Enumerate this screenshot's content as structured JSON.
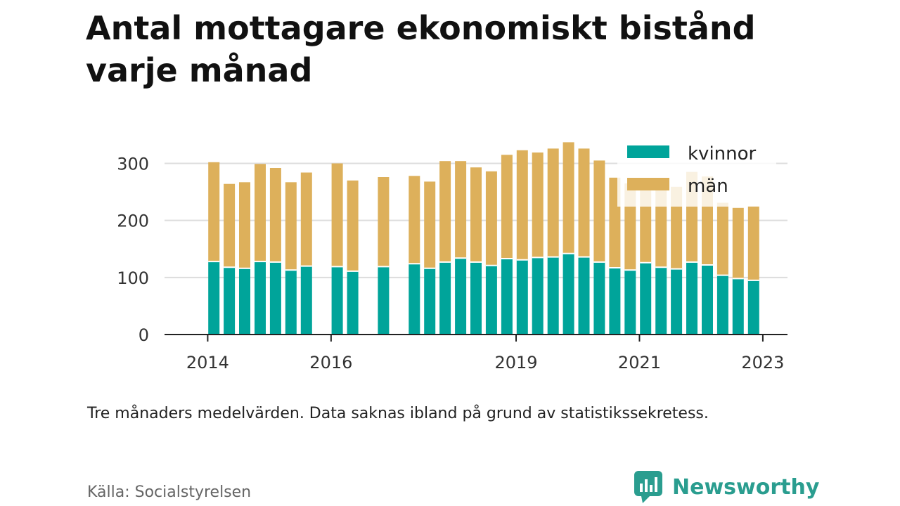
{
  "header": {
    "title": "Antal mottagare ekonomiskt bistånd varje månad"
  },
  "colors": {
    "kvinnor": "#00a49a",
    "man": "#ddb05b",
    "grid": "#dddddd",
    "brand": "#2a9d8f"
  },
  "legend": {
    "items": [
      "kvinnor",
      "män"
    ]
  },
  "chart_data": {
    "type": "bar",
    "stacked": true,
    "yticks": [
      "0",
      "100",
      "200",
      "300"
    ],
    "ylim": [
      0,
      340
    ],
    "xticks": [
      {
        "label": "2014",
        "index": -0.4
      },
      {
        "label": "2016",
        "index": 7.6
      },
      {
        "label": "2019",
        "index": 19.6
      },
      {
        "label": "2021",
        "index": 27.6
      },
      {
        "label": "2023",
        "index": 35.6
      }
    ],
    "xlim": [
      -3.2,
      37.2
    ],
    "series": [
      {
        "name": "kvinnor",
        "values": [
          128,
          118,
          116,
          128,
          127,
          113,
          120,
          null,
          119,
          111,
          null,
          119,
          null,
          124,
          116,
          127,
          134,
          127,
          121,
          133,
          131,
          135,
          136,
          142,
          136,
          127,
          117,
          113,
          126,
          118,
          115,
          127,
          122,
          104,
          98,
          95
        ]
      },
      {
        "name": "män",
        "values": [
          174,
          146,
          151,
          171,
          165,
          154,
          164,
          null,
          181,
          159,
          null,
          157,
          null,
          154,
          152,
          177,
          170,
          166,
          165,
          182,
          192,
          184,
          190,
          195,
          190,
          178,
          158,
          152,
          145,
          145,
          144,
          158,
          155,
          127,
          124,
          130
        ]
      }
    ],
    "grid": true,
    "legend_position": "top-right"
  },
  "footer": {
    "note": "Tre månaders medelvärden. Data saknas ibland på grund av statistikssekretess.",
    "source": "Källa: Socialstyrelsen",
    "brand": "Newsworthy"
  }
}
